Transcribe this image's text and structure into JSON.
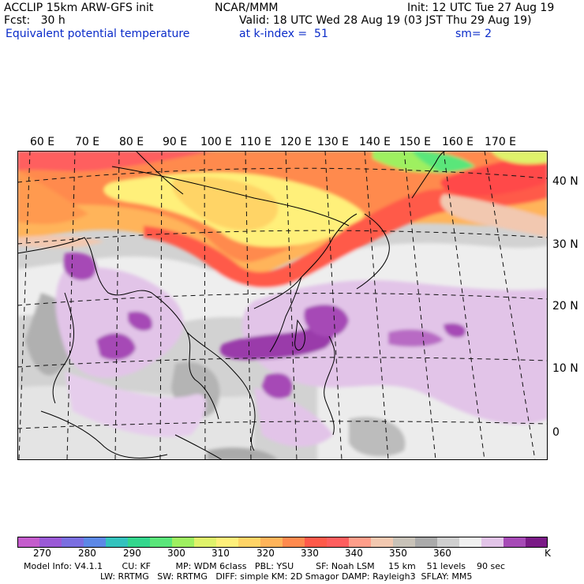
{
  "header": {
    "line1_left": "ACCLIP 15km ARW-GFS init",
    "line1_center": "NCAR/MMM",
    "line1_right": "Init: 12 UTC Tue 27 Aug 19",
    "line2_left": "Fcst:   30 h",
    "line2_right": "Valid: 18 UTC Wed 28 Aug 19 (03 JST Thu 29 Aug 19)",
    "line3_left": "Equivalent potential temperature",
    "line3_center": "at k-index =  51",
    "line3_right": "sm= 2"
  },
  "map": {
    "lon_labels": [
      "60 E",
      "70 E",
      "80 E",
      "90 E",
      "100 E",
      "110 E",
      "120 E",
      "130 E",
      "140 E",
      "150 E",
      "160 E",
      "170 E"
    ],
    "lat_labels": [
      "40 N",
      "30 N",
      "20 N",
      "10 N",
      "0"
    ]
  },
  "colorbar": {
    "colors": [
      "#c45ccc",
      "#9a59d6",
      "#7a6ee0",
      "#5c88e6",
      "#33c2bd",
      "#33d68d",
      "#5ae67a",
      "#9ef060",
      "#dff26a",
      "#fff07a",
      "#ffd466",
      "#ffb45a",
      "#ff8a4e",
      "#ff5a4a",
      "#ff5e5e",
      "#ff9e8a",
      "#f2c8b0",
      "#c8c2b8",
      "#aaaaaa",
      "#cfcfcf",
      "#f0f0f0",
      "#e2c4e8",
      "#a64ab6",
      "#7a1a86"
    ],
    "labels": [
      "270",
      "280",
      "290",
      "300",
      "310",
      "320",
      "330",
      "340",
      "350",
      "360",
      "K"
    ],
    "unit": "K"
  },
  "model_info": {
    "line1": "Model Info: V4.1.1       CU: KF         MP: WDM 6class   PBL: YSU        SF: Noah LSM     15 km    51 levels    90 sec",
    "line2": "LW: RRTMG   SW: RRTMG   DIFF: simple KM: 2D Smagor DAMP: Rayleigh3  SFLAY: MM5"
  }
}
